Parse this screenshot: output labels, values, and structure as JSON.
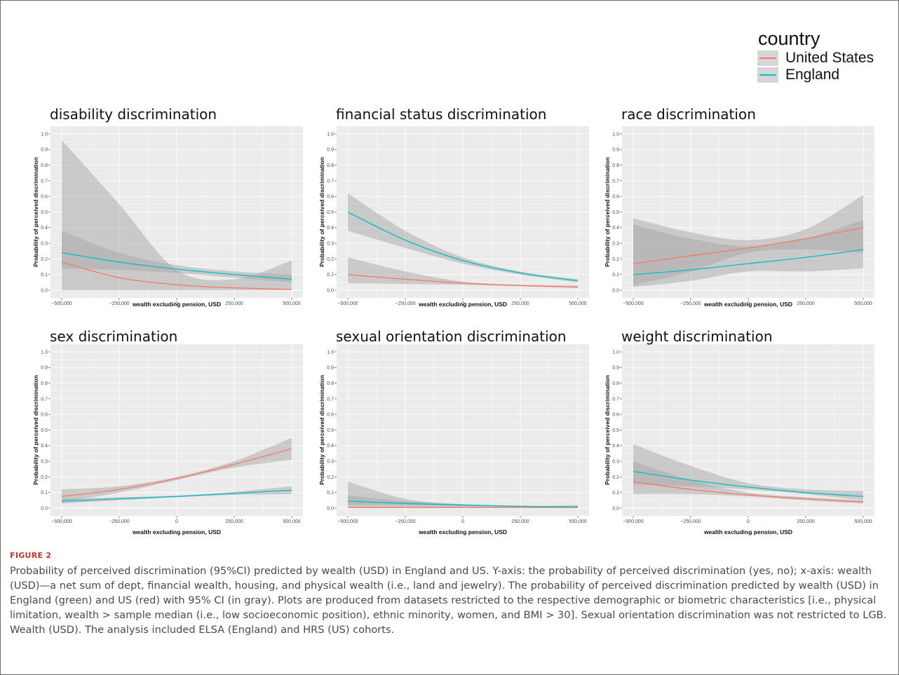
{
  "legend": {
    "title": "country",
    "items": [
      {
        "label": "United States",
        "color": "#F8766D"
      },
      {
        "label": "England",
        "color": "#00BFC4"
      }
    ]
  },
  "figure_label": "FIGURE 2",
  "caption": "Probability of perceived discrimination (95%CI) predicted by wealth (USD) in England and US. Y-axis: the probability of perceived discrimination (yes, no); x-axis: wealth (USD)—a net sum of dept, financial wealth, housing, and physical wealth (i.e., land and jewelry). The probability of perceived discrimination predicted by wealth (USD) in England (green) and US (red) with 95% CI (in gray). Plots are produced from datasets restricted to the respective demographic or biometric characteristics [i.e., physical limitation, wealth > sample median (i.e., low socioeconomic position), ethnic minority, women, and BMI > 30]. Sexual orientation discrimination was not restricted to LGB. Wealth (USD). The analysis included ELSA (England) and HRS (US) cohorts.",
  "colors": {
    "panel_bg": "#EBEBEB",
    "grid": "#ffffff",
    "ci": "#a8a8a8",
    "us": "#F8766D",
    "england": "#00BFC4"
  },
  "chart_data": [
    {
      "type": "line",
      "title": "disability discrimination",
      "xlabel": "wealth excluding pension, USD",
      "ylabel": "Probability of perceived discrimination",
      "x": [
        -500000,
        -250000,
        0,
        250000,
        500000
      ],
      "xticks": [
        "−500,000",
        "−250,000",
        "0",
        "250,000",
        "500,000"
      ],
      "yticks": [
        "0.0",
        "0.1",
        "0.2",
        "0.3",
        "0.4",
        "0.5",
        "0.6",
        "0.7",
        "0.8",
        "0.9",
        "1.0"
      ],
      "xlim": [
        -500000,
        500000
      ],
      "ylim": [
        0,
        1
      ],
      "grid": true,
      "series": [
        {
          "name": "United States",
          "values": [
            0.18,
            0.08,
            0.035,
            0.015,
            0.005
          ],
          "lower": [
            0.0,
            0.0,
            0.0,
            0.0,
            0.0
          ],
          "upper": [
            0.96,
            0.55,
            0.13,
            0.07,
            0.19
          ]
        },
        {
          "name": "England",
          "values": [
            0.24,
            0.18,
            0.135,
            0.1,
            0.07
          ],
          "lower": [
            0.14,
            0.13,
            0.11,
            0.08,
            0.05
          ],
          "upper": [
            0.38,
            0.24,
            0.16,
            0.12,
            0.1
          ]
        }
      ]
    },
    {
      "type": "line",
      "title": "financial status discrimination",
      "xlabel": "wealth excluding pension, USD",
      "ylabel": "Probability of perceived discrimination",
      "x": [
        -500000,
        -250000,
        0,
        250000,
        500000
      ],
      "xticks": [
        "−500,000",
        "−250,000",
        "0",
        "250,000",
        "500,000"
      ],
      "yticks": [
        "0.0",
        "0.1",
        "0.2",
        "0.3",
        "0.4",
        "0.5",
        "0.6",
        "0.7",
        "0.8",
        "0.9",
        "1.0"
      ],
      "xlim": [
        -500000,
        500000
      ],
      "ylim": [
        0,
        1
      ],
      "grid": true,
      "series": [
        {
          "name": "United States",
          "values": [
            0.1,
            0.07,
            0.045,
            0.03,
            0.02
          ],
          "lower": [
            0.045,
            0.04,
            0.035,
            0.025,
            0.015
          ],
          "upper": [
            0.21,
            0.12,
            0.055,
            0.035,
            0.03
          ]
        },
        {
          "name": "England",
          "values": [
            0.5,
            0.32,
            0.19,
            0.11,
            0.06
          ],
          "lower": [
            0.38,
            0.27,
            0.17,
            0.1,
            0.05
          ],
          "upper": [
            0.62,
            0.38,
            0.21,
            0.12,
            0.07
          ]
        }
      ]
    },
    {
      "type": "line",
      "title": "race discrimination",
      "xlabel": "wealth excluding pension, USD",
      "ylabel": "Probability of perceived discrimination",
      "x": [
        -500000,
        -250000,
        0,
        250000,
        500000
      ],
      "xticks": [
        "−500,000",
        "−250,000",
        "0",
        "250,000",
        "500,000"
      ],
      "yticks": [
        "0.0",
        "0.1",
        "0.2",
        "0.3",
        "0.4",
        "0.5",
        "0.6",
        "0.7",
        "0.8",
        "0.9",
        "1.0"
      ],
      "xlim": [
        -500000,
        500000
      ],
      "ylim": [
        0,
        1
      ],
      "grid": true,
      "series": [
        {
          "name": "United States",
          "values": [
            0.17,
            0.22,
            0.27,
            0.33,
            0.4
          ],
          "lower": [
            0.03,
            0.12,
            0.24,
            0.26,
            0.24
          ],
          "upper": [
            0.46,
            0.37,
            0.32,
            0.39,
            0.61
          ]
        },
        {
          "name": "England",
          "values": [
            0.1,
            0.13,
            0.17,
            0.21,
            0.26
          ],
          "lower": [
            0.02,
            0.06,
            0.12,
            0.12,
            0.14
          ],
          "upper": [
            0.42,
            0.33,
            0.28,
            0.33,
            0.45
          ]
        }
      ]
    },
    {
      "type": "line",
      "title": "sex discrimination",
      "xlabel": "wealth excluding pension, USD",
      "ylabel": "Probability of perceived discrimination",
      "x": [
        -500000,
        -250000,
        0,
        250000,
        500000
      ],
      "xticks": [
        "−500,000",
        "−250,000",
        "0",
        "250,000",
        "500,000"
      ],
      "yticks": [
        "0.0",
        "0.1",
        "0.2",
        "0.3",
        "0.4",
        "0.5",
        "0.6",
        "0.7",
        "0.8",
        "0.9",
        "1.0"
      ],
      "xlim": [
        -500000,
        500000
      ],
      "ylim": [
        0,
        1
      ],
      "grid": true,
      "series": [
        {
          "name": "United States",
          "values": [
            0.075,
            0.12,
            0.19,
            0.28,
            0.38
          ],
          "lower": [
            0.04,
            0.1,
            0.18,
            0.26,
            0.31
          ],
          "upper": [
            0.12,
            0.14,
            0.2,
            0.3,
            0.45
          ]
        },
        {
          "name": "England",
          "values": [
            0.045,
            0.06,
            0.075,
            0.095,
            0.115
          ],
          "lower": [
            0.03,
            0.05,
            0.07,
            0.085,
            0.09
          ],
          "upper": [
            0.06,
            0.07,
            0.08,
            0.105,
            0.14
          ]
        }
      ]
    },
    {
      "type": "line",
      "title": "sexual orientation discrimination",
      "xlabel": "wealth excluding pension, USD",
      "ylabel": "Probability of perceived discrimination",
      "x": [
        -500000,
        -250000,
        0,
        250000,
        500000
      ],
      "xticks": [
        "−500,000",
        "−250,000",
        "0",
        "250,000",
        "500,000"
      ],
      "yticks": [
        "0.0",
        "0.1",
        "0.2",
        "0.3",
        "0.4",
        "0.5",
        "0.6",
        "0.7",
        "0.8",
        "0.9",
        "1.0"
      ],
      "xlim": [
        -500000,
        500000
      ],
      "ylim": [
        0,
        1
      ],
      "grid": true,
      "series": [
        {
          "name": "United States",
          "values": [
            0.005,
            0.005,
            0.005,
            0.005,
            0.005
          ],
          "lower": [
            0.0,
            0.0,
            0.0,
            0.0,
            0.0
          ],
          "upper": [
            0.17,
            0.06,
            0.025,
            0.012,
            0.02
          ]
        },
        {
          "name": "England",
          "values": [
            0.045,
            0.03,
            0.02,
            0.012,
            0.008
          ],
          "lower": [
            0.02,
            0.02,
            0.015,
            0.01,
            0.005
          ],
          "upper": [
            0.08,
            0.045,
            0.025,
            0.015,
            0.012
          ]
        }
      ]
    },
    {
      "type": "line",
      "title": "weight discrimination",
      "xlabel": "wealth excluding pension, USD",
      "ylabel": "Probability of perceived discrimination",
      "x": [
        -500000,
        -250000,
        0,
        250000,
        500000
      ],
      "xticks": [
        "−500,000",
        "−250,000",
        "0",
        "250,000",
        "500,000"
      ],
      "yticks": [
        "0.0",
        "0.1",
        "0.2",
        "0.3",
        "0.4",
        "0.5",
        "0.6",
        "0.7",
        "0.8",
        "0.9",
        "1.0"
      ],
      "xlim": [
        -500000,
        500000
      ],
      "ylim": [
        0,
        1
      ],
      "grid": true,
      "series": [
        {
          "name": "United States",
          "values": [
            0.17,
            0.12,
            0.085,
            0.06,
            0.04
          ],
          "lower": [
            0.09,
            0.09,
            0.075,
            0.05,
            0.03
          ],
          "upper": [
            0.3,
            0.18,
            0.1,
            0.07,
            0.05
          ]
        },
        {
          "name": "England",
          "values": [
            0.235,
            0.18,
            0.135,
            0.1,
            0.075
          ],
          "lower": [
            0.15,
            0.14,
            0.12,
            0.09,
            0.05
          ],
          "upper": [
            0.41,
            0.27,
            0.16,
            0.12,
            0.11
          ]
        }
      ]
    }
  ]
}
